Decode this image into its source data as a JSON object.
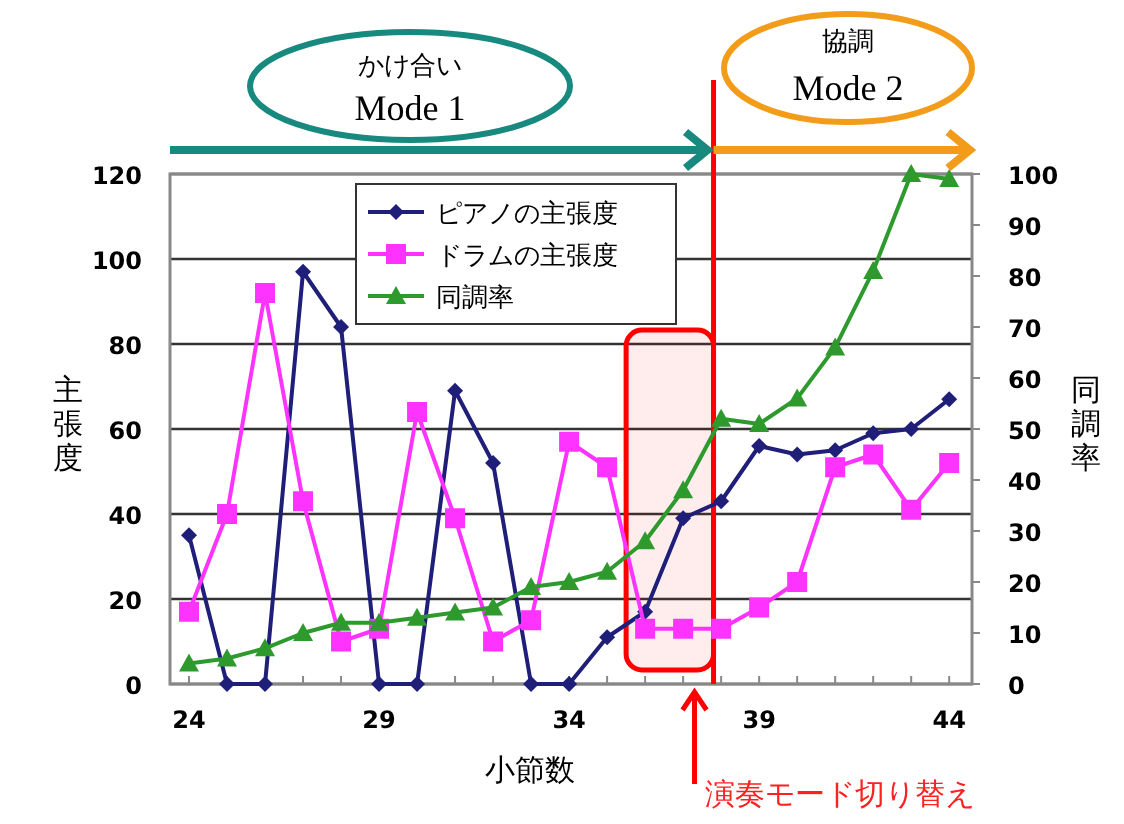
{
  "chart_data": {
    "type": "line",
    "x": [
      24,
      25,
      26,
      27,
      28,
      29,
      30,
      31,
      32,
      33,
      34,
      35,
      36,
      37,
      38,
      39,
      40,
      41,
      42,
      43,
      44
    ],
    "xlabel": "小節数",
    "ylabel": "主張度",
    "y2label": "同調率",
    "xlim": [
      23.5,
      44.6
    ],
    "xticks": [
      24,
      {
        "value": 25,
        "label": null
      },
      {
        "value": 26,
        "label": null
      },
      {
        "value": 27,
        "label": null
      },
      {
        "value": 28,
        "label": null
      },
      29,
      {
        "value": 30,
        "label": null
      },
      {
        "value": 31,
        "label": null
      },
      {
        "value": 32,
        "label": null
      },
      {
        "value": 33,
        "label": null
      },
      34,
      {
        "value": 35,
        "label": null
      },
      {
        "value": 36,
        "label": null
      },
      {
        "value": 37,
        "label": null
      },
      {
        "value": 38,
        "label": null
      },
      39,
      {
        "value": 40,
        "label": null
      },
      {
        "value": 41,
        "label": null
      },
      {
        "value": 42,
        "label": null
      },
      {
        "value": 43,
        "label": null
      },
      44
    ],
    "ylim": [
      0,
      120
    ],
    "yticks": [
      0,
      20,
      40,
      60,
      80,
      100,
      120
    ],
    "y2lim": [
      0,
      100
    ],
    "y2ticks": [
      0,
      10,
      20,
      30,
      40,
      50,
      60,
      70,
      80,
      90,
      100
    ],
    "grid": "y",
    "legend": "top",
    "series": [
      {
        "name": "ピアノの主張度",
        "color": "#1f1f7a",
        "marker": "diamond",
        "values": [
          35,
          0,
          0,
          97,
          84,
          0,
          0,
          69,
          52,
          0,
          0,
          11,
          17,
          39,
          43,
          56,
          54,
          55,
          59,
          60,
          67
        ]
      },
      {
        "name": "ドラムの主張度",
        "color": "#ff33ff",
        "marker": "square",
        "values": [
          17,
          40,
          92,
          43,
          10,
          13,
          64,
          39,
          10,
          15,
          57,
          51,
          13,
          13,
          13,
          18,
          24,
          51,
          54,
          41,
          52
        ]
      },
      {
        "name": "同調率",
        "color": "#2e9a2e",
        "marker": "triangle",
        "axis": "y2",
        "values": [
          4,
          5,
          7,
          10,
          12,
          12,
          13,
          14,
          15,
          19,
          20,
          22,
          28,
          38,
          52,
          51,
          56,
          66,
          81,
          100,
          99
        ]
      }
    ],
    "ref_lines": [
      {
        "axis": "x",
        "value": 37.8,
        "color": "#ff0000"
      }
    ],
    "bands": [
      {
        "axis": "x",
        "from": 35.5,
        "to": 37.8,
        "color": "#ff0000"
      }
    ],
    "annotations": [
      "かけ合い",
      "Mode 1",
      "協調",
      "Mode 2",
      "演奏モード切り替え"
    ]
  }
}
